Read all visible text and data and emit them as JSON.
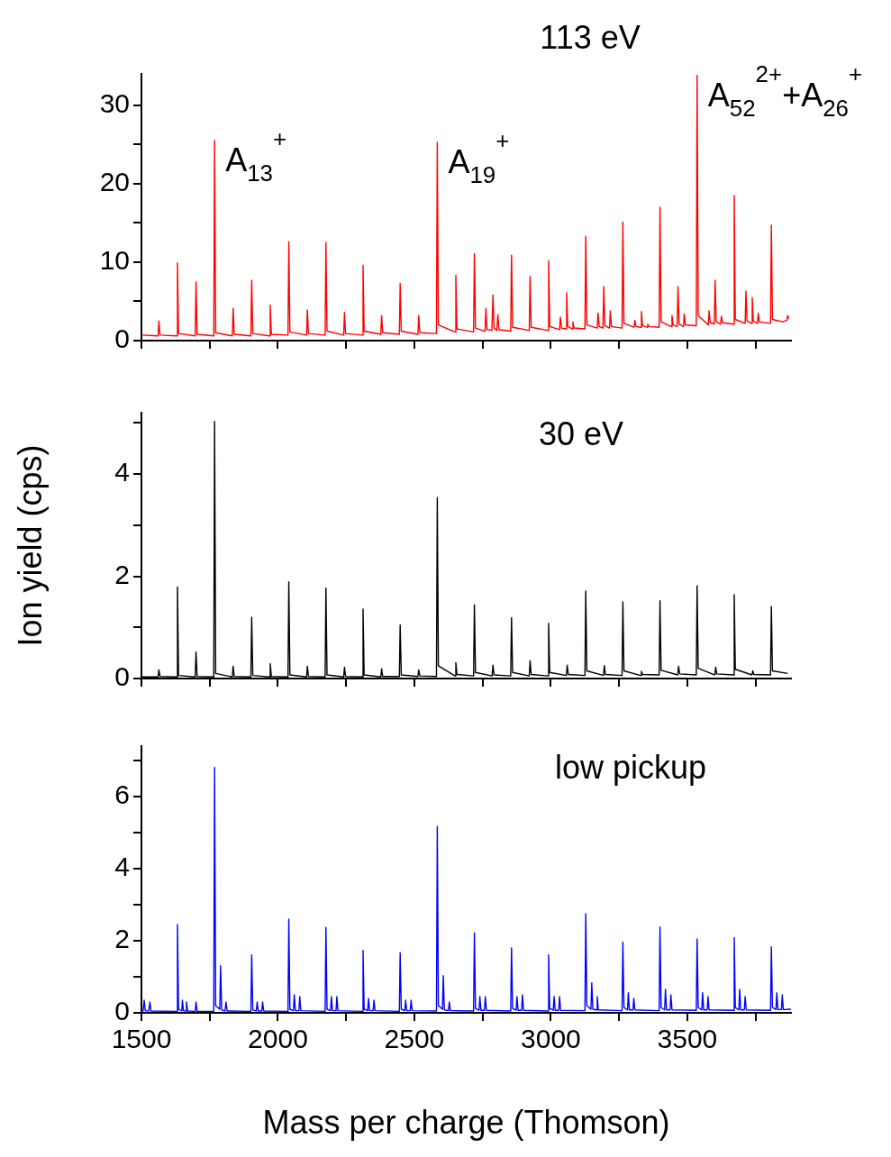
{
  "chart_data": [
    {
      "type": "line",
      "title": "113 eV",
      "xlim": [
        1500,
        3880
      ],
      "xticks": [
        1500,
        {
          "value": 1750,
          "label": null
        },
        2000,
        {
          "value": 2250,
          "label": null
        },
        2500,
        {
          "value": 2750,
          "label": null
        },
        3000,
        {
          "value": 3250,
          "label": null
        },
        3500,
        {
          "value": 3750,
          "label": null
        }
      ],
      "ylim": [
        0,
        34
      ],
      "yticks": [
        0,
        {
          "value": 5,
          "label": null
        },
        10,
        {
          "value": 15,
          "label": null
        },
        20,
        {
          "value": 25,
          "label": null
        },
        30
      ],
      "grid": false,
      "tick_labels": "y",
      "annotations": [
        {
          "text": "A$_{13}$$^{+}$",
          "x": 1768,
          "y": 25.5
        },
        {
          "text": "A$_{19}$$^{+}$",
          "x": 2584,
          "y": 25.3
        },
        {
          "text": "A$_{52}$$^{2+}$+A$_{26}$$^{+}$",
          "x": 3536,
          "y": 33.8
        }
      ],
      "series": [
        {
          "color": "#ff0000",
          "x": [
            1500,
            1561,
            1564,
            1568,
            1629,
            1632,
            1636,
            1697,
            1700,
            1704,
            1765,
            1768,
            1772,
            1833,
            1836,
            1840,
            1901,
            1904,
            1908,
            1969,
            1972,
            1976,
            2037,
            2040,
            2044,
            2105,
            2108,
            2112,
            2173,
            2176,
            2180,
            2241,
            2244,
            2248,
            2309,
            2312,
            2316,
            2377,
            2380,
            2384,
            2445,
            2448,
            2452,
            2513,
            2516,
            2520,
            2581,
            2584,
            2588,
            2649,
            2652,
            2656,
            2717,
            2720,
            2724,
            2759,
            2762,
            2766,
            2784,
            2788,
            2792,
            2802,
            2806,
            2810,
            2853,
            2856,
            2860,
            2921,
            2924,
            2928,
            2989,
            2992,
            2996,
            3032,
            3035,
            3039,
            3055,
            3058,
            3062,
            3078,
            3081,
            3085,
            3125,
            3128,
            3132,
            3170,
            3173,
            3177,
            3191,
            3194,
            3198,
            3215,
            3218,
            3222,
            3261,
            3264,
            3268,
            3305,
            3308,
            3312,
            3329,
            3332,
            3336,
            3352,
            3355,
            3359,
            3397,
            3400,
            3404,
            3441,
            3444,
            3448,
            3463,
            3466,
            3470,
            3486,
            3489,
            3493,
            3533,
            3536,
            3540,
            3577,
            3580,
            3584,
            3599,
            3602,
            3606,
            3622,
            3625,
            3629,
            3669,
            3672,
            3676,
            3712,
            3715,
            3719,
            3735,
            3738,
            3742,
            3757,
            3760,
            3764,
            3805,
            3808,
            3812,
            3850,
            3865,
            3868,
            3872
          ],
          "values": [
            0.7,
            0.6,
            2.5,
            0.7,
            0.6,
            9.9,
            0.9,
            0.6,
            7.5,
            0.8,
            0.6,
            25.5,
            1.0,
            0.6,
            4.1,
            0.8,
            0.6,
            7.7,
            0.9,
            0.6,
            4.5,
            0.8,
            0.7,
            12.6,
            1.1,
            0.7,
            3.9,
            0.9,
            0.7,
            12.5,
            1.2,
            0.7,
            3.6,
            0.9,
            0.7,
            9.6,
            1.2,
            0.8,
            3.2,
            1.0,
            0.8,
            7.3,
            1.2,
            0.8,
            3.2,
            1.0,
            0.9,
            25.3,
            2.0,
            1.1,
            8.3,
            1.5,
            1.1,
            11.1,
            1.6,
            1.2,
            4.1,
            1.4,
            1.3,
            5.8,
            1.6,
            1.3,
            3.3,
            1.4,
            1.2,
            10.9,
            1.7,
            1.3,
            8.2,
            1.7,
            1.3,
            10.2,
            1.8,
            1.4,
            3.0,
            1.6,
            1.5,
            6.1,
            1.8,
            1.5,
            2.4,
            1.6,
            1.5,
            13.3,
            2.0,
            1.6,
            3.5,
            1.8,
            1.6,
            6.9,
            1.9,
            1.6,
            3.8,
            1.8,
            1.6,
            15.1,
            2.2,
            1.7,
            2.6,
            1.8,
            1.7,
            3.7,
            1.9,
            1.7,
            2.1,
            1.8,
            1.7,
            17.0,
            2.4,
            1.8,
            3.2,
            2.0,
            1.8,
            6.9,
            2.1,
            1.8,
            3.4,
            2.0,
            1.9,
            33.8,
            3.2,
            2.0,
            3.8,
            2.3,
            2.1,
            7.7,
            2.4,
            2.1,
            3.1,
            2.3,
            2.1,
            18.5,
            2.7,
            2.2,
            6.3,
            2.5,
            2.2,
            5.5,
            2.5,
            2.2,
            3.5,
            2.4,
            2.2,
            14.7,
            2.7,
            2.4,
            2.6,
            3.2,
            2.8
          ]
        }
      ]
    },
    {
      "type": "line",
      "title": "30 eV",
      "ylabel": "Ion yield (cps)",
      "xlim": [
        1500,
        3880
      ],
      "xticks": [
        1500,
        {
          "value": 1750,
          "label": null
        },
        2000,
        {
          "value": 2250,
          "label": null
        },
        2500,
        {
          "value": 2750,
          "label": null
        },
        3000,
        {
          "value": 3250,
          "label": null
        },
        3500,
        {
          "value": 3750,
          "label": null
        }
      ],
      "ylim": [
        0,
        5.2
      ],
      "yticks": [
        0,
        {
          "value": 1,
          "label": null
        },
        2,
        {
          "value": 3,
          "label": null
        },
        4,
        {
          "value": 5,
          "label": null
        }
      ],
      "grid": false,
      "tick_labels": "y",
      "series": [
        {
          "color": "#000000",
          "x": [
            1500,
            1561,
            1564,
            1568,
            1629,
            1632,
            1636,
            1697,
            1700,
            1704,
            1765,
            1768,
            1772,
            1833,
            1836,
            1840,
            1901,
            1904,
            1908,
            1969,
            1972,
            1976,
            2037,
            2040,
            2044,
            2105,
            2108,
            2112,
            2173,
            2176,
            2180,
            2241,
            2244,
            2248,
            2309,
            2312,
            2316,
            2377,
            2380,
            2384,
            2445,
            2448,
            2452,
            2513,
            2516,
            2520,
            2581,
            2584,
            2588,
            2649,
            2652,
            2656,
            2717,
            2720,
            2724,
            2785,
            2788,
            2792,
            2853,
            2856,
            2860,
            2921,
            2924,
            2928,
            2989,
            2992,
            2996,
            3057,
            3060,
            3064,
            3125,
            3128,
            3132,
            3193,
            3196,
            3200,
            3261,
            3264,
            3268,
            3329,
            3332,
            3336,
            3397,
            3400,
            3404,
            3465,
            3468,
            3472,
            3533,
            3536,
            3540,
            3601,
            3604,
            3608,
            3669,
            3672,
            3676,
            3737,
            3740,
            3744,
            3805,
            3808,
            3812,
            3868
          ],
          "values": [
            0.03,
            0.03,
            0.17,
            0.04,
            0.03,
            1.79,
            0.06,
            0.03,
            0.52,
            0.04,
            0.03,
            5.03,
            0.1,
            0.03,
            0.24,
            0.04,
            0.03,
            1.2,
            0.06,
            0.03,
            0.29,
            0.04,
            0.03,
            1.89,
            0.07,
            0.03,
            0.24,
            0.04,
            0.03,
            1.77,
            0.07,
            0.03,
            0.22,
            0.04,
            0.03,
            1.36,
            0.07,
            0.03,
            0.19,
            0.04,
            0.04,
            1.05,
            0.07,
            0.04,
            0.17,
            0.05,
            0.04,
            3.54,
            0.25,
            0.05,
            0.31,
            0.08,
            0.05,
            1.44,
            0.12,
            0.05,
            0.26,
            0.07,
            0.05,
            1.19,
            0.12,
            0.05,
            0.35,
            0.08,
            0.05,
            1.08,
            0.12,
            0.06,
            0.26,
            0.08,
            0.06,
            1.71,
            0.15,
            0.06,
            0.25,
            0.08,
            0.06,
            1.5,
            0.15,
            0.06,
            0.14,
            0.08,
            0.07,
            1.52,
            0.16,
            0.07,
            0.24,
            0.09,
            0.07,
            1.81,
            0.2,
            0.07,
            0.22,
            0.09,
            0.07,
            1.64,
            0.18,
            0.07,
            0.15,
            0.08,
            0.07,
            1.41,
            0.15,
            0.1
          ]
        }
      ]
    },
    {
      "type": "line",
      "title": "low pickup",
      "xlabel": "Mass per charge (Thomson)",
      "xlim": [
        1500,
        3880
      ],
      "xticks": [
        1500,
        {
          "value": 1750,
          "label": null
        },
        2000,
        {
          "value": 2250,
          "label": null
        },
        2500,
        {
          "value": 2750,
          "label": null
        },
        3000,
        {
          "value": 3250,
          "label": null
        },
        3500,
        {
          "value": 3750,
          "label": null
        }
      ],
      "ylim": [
        0,
        7.4
      ],
      "yticks": [
        0,
        {
          "value": 1,
          "label": null
        },
        2,
        {
          "value": 3,
          "label": null
        },
        4,
        {
          "value": 5,
          "label": null
        },
        6,
        {
          "value": 7,
          "label": null
        }
      ],
      "grid": false,
      "series": [
        {
          "color": "#0000ff",
          "x": [
            1500,
            1506,
            1510,
            1514,
            1527,
            1531,
            1535,
            1629,
            1632,
            1636,
            1648,
            1650,
            1654,
            1662,
            1665,
            1669,
            1697,
            1700,
            1704,
            1765,
            1768,
            1772,
            1787,
            1790,
            1794,
            1806,
            1810,
            1814,
            1901,
            1904,
            1908,
            1921,
            1924,
            1928,
            1941,
            1944,
            1948,
            2037,
            2040,
            2044,
            2057,
            2060,
            2064,
            2077,
            2080,
            2084,
            2173,
            2176,
            2180,
            2193,
            2196,
            2200,
            2213,
            2216,
            2220,
            2309,
            2312,
            2316,
            2329,
            2332,
            2336,
            2349,
            2352,
            2356,
            2445,
            2448,
            2452,
            2465,
            2468,
            2472,
            2485,
            2488,
            2492,
            2581,
            2584,
            2588,
            2603,
            2606,
            2610,
            2625,
            2628,
            2632,
            2717,
            2720,
            2724,
            2737,
            2740,
            2744,
            2757,
            2760,
            2764,
            2853,
            2856,
            2860,
            2873,
            2876,
            2880,
            2893,
            2896,
            2900,
            2989,
            2992,
            2996,
            3009,
            3012,
            3016,
            3029,
            3032,
            3036,
            3125,
            3128,
            3132,
            3147,
            3150,
            3154,
            3167,
            3170,
            3174,
            3261,
            3264,
            3268,
            3281,
            3284,
            3288,
            3301,
            3304,
            3308,
            3397,
            3400,
            3404,
            3417,
            3420,
            3424,
            3437,
            3440,
            3444,
            3533,
            3536,
            3540,
            3553,
            3556,
            3560,
            3573,
            3576,
            3580,
            3669,
            3672,
            3676,
            3689,
            3692,
            3696,
            3709,
            3712,
            3716,
            3805,
            3808,
            3812,
            3825,
            3828,
            3832,
            3845,
            3848,
            3852,
            3880
          ],
          "values": [
            0.1,
            0.05,
            0.35,
            0.06,
            0.05,
            0.3,
            0.05,
            0.04,
            2.45,
            0.1,
            0.05,
            0.35,
            0.06,
            0.05,
            0.3,
            0.05,
            0.04,
            0.3,
            0.04,
            0.04,
            6.81,
            0.2,
            0.1,
            1.31,
            0.08,
            0.05,
            0.3,
            0.05,
            0.04,
            1.61,
            0.08,
            0.05,
            0.3,
            0.05,
            0.05,
            0.3,
            0.05,
            0.04,
            2.6,
            0.1,
            0.06,
            0.5,
            0.06,
            0.06,
            0.45,
            0.06,
            0.04,
            2.37,
            0.1,
            0.06,
            0.45,
            0.06,
            0.06,
            0.45,
            0.06,
            0.04,
            1.73,
            0.1,
            0.06,
            0.4,
            0.06,
            0.06,
            0.35,
            0.06,
            0.04,
            1.67,
            0.1,
            0.06,
            0.35,
            0.06,
            0.06,
            0.35,
            0.06,
            0.05,
            5.17,
            0.2,
            0.1,
            1.03,
            0.08,
            0.06,
            0.3,
            0.06,
            0.05,
            2.22,
            0.12,
            0.07,
            0.45,
            0.07,
            0.07,
            0.45,
            0.07,
            0.05,
            1.8,
            0.12,
            0.07,
            0.45,
            0.07,
            0.07,
            0.5,
            0.07,
            0.05,
            1.61,
            0.12,
            0.07,
            0.45,
            0.07,
            0.07,
            0.45,
            0.07,
            0.06,
            2.75,
            0.2,
            0.1,
            0.83,
            0.1,
            0.08,
            0.45,
            0.08,
            0.06,
            1.96,
            0.15,
            0.08,
            0.56,
            0.08,
            0.08,
            0.4,
            0.08,
            0.06,
            2.38,
            0.15,
            0.08,
            0.65,
            0.08,
            0.08,
            0.5,
            0.08,
            0.07,
            2.05,
            0.15,
            0.08,
            0.56,
            0.08,
            0.08,
            0.45,
            0.08,
            0.07,
            2.09,
            0.15,
            0.08,
            0.65,
            0.08,
            0.08,
            0.45,
            0.08,
            0.07,
            1.83,
            0.15,
            0.09,
            0.56,
            0.09,
            0.09,
            0.5,
            0.09,
            0.1
          ]
        }
      ]
    }
  ]
}
